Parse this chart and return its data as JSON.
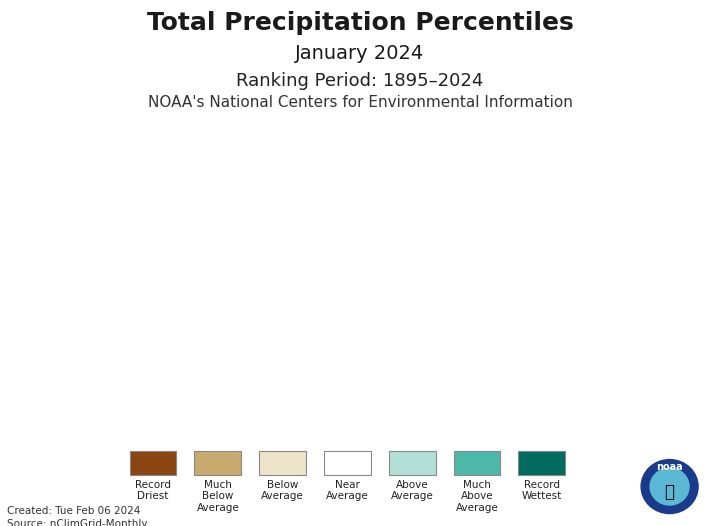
{
  "title_line1": "Total Precipitation Percentiles",
  "title_line2": "January 2024",
  "subtitle_line1": "Ranking Period: 1895–2024",
  "subtitle_line2": "NOAA's National Centers for Environmental Information",
  "footer_line1": "Created: Tue Feb 06 2024",
  "footer_line2": "Source: nClimGrid-Monthly",
  "background_color": "#aaaaaa",
  "header_bg": "#ffffff",
  "footer_bg": "#ffffff",
  "legend_labels": [
    "Record\nDriest",
    "Much\nBelow\nAverage",
    "Below\nAverage",
    "Near\nAverage",
    "Above\nAverage",
    "Much\nAbove\nAverage",
    "Record\nWettest"
  ],
  "legend_colors": [
    "#8B4513",
    "#C8A96E",
    "#EDE3C8",
    "#FFFFFF",
    "#B2E0D8",
    "#4DB8A8",
    "#006B5E"
  ],
  "map_bg": "#b0b0b0",
  "title_fontsize": 18,
  "subtitle1_fontsize": 13,
  "subtitle2_fontsize": 11,
  "noaa_circle_color": "#1a3a8c",
  "border_color": "#555555"
}
